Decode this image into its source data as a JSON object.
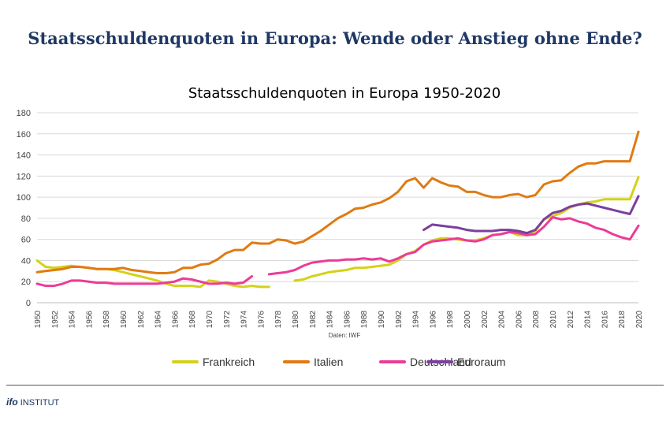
{
  "header": {
    "title": "Staatsschuldenquoten in Europa: Wende oder Anstieg ohne Ende?"
  },
  "footer": {
    "logo_word": "ifo",
    "logo_suffix": "INSTITUT"
  },
  "chart_data": {
    "type": "line",
    "title": "Staatsschuldenquoten in Europa 1950-2020",
    "source": "Daten: IWF",
    "xlabel": "",
    "ylabel": "",
    "ylim": [
      0,
      180
    ],
    "xlim": [
      1950,
      2020
    ],
    "yticks": [
      0,
      20,
      40,
      60,
      80,
      100,
      120,
      140,
      160,
      180
    ],
    "xticks": [
      1950,
      1952,
      1954,
      1956,
      1958,
      1960,
      1962,
      1964,
      1966,
      1968,
      1970,
      1972,
      1974,
      1976,
      1978,
      1980,
      1982,
      1984,
      1986,
      1988,
      1990,
      1992,
      1994,
      1996,
      1998,
      2000,
      2002,
      2004,
      2006,
      2008,
      2010,
      2012,
      2014,
      2016,
      2018,
      2020
    ],
    "grid": "horizontal",
    "legend_position": "bottom",
    "series": [
      {
        "name": "Frankreich",
        "color": "#d4d11a",
        "segments": [
          [
            [
              1950,
              40
            ],
            [
              1951,
              34
            ],
            [
              1952,
              33
            ],
            [
              1953,
              34
            ],
            [
              1954,
              35
            ],
            [
              1955,
              34
            ],
            [
              1956,
              33
            ],
            [
              1957,
              32
            ],
            [
              1958,
              32
            ],
            [
              1959,
              31
            ],
            [
              1960,
              29
            ],
            [
              1961,
              27
            ],
            [
              1962,
              25
            ],
            [
              1963,
              23
            ],
            [
              1964,
              21
            ],
            [
              1965,
              18
            ],
            [
              1966,
              16
            ],
            [
              1967,
              16
            ],
            [
              1968,
              16
            ],
            [
              1969,
              15
            ],
            [
              1970,
              21
            ],
            [
              1971,
              20
            ],
            [
              1972,
              18
            ],
            [
              1973,
              16
            ],
            [
              1974,
              15
            ],
            [
              1975,
              16
            ],
            [
              1976,
              15
            ],
            [
              1977,
              15
            ]
          ],
          [
            [
              1980,
              21
            ],
            [
              1981,
              22
            ],
            [
              1982,
              25
            ],
            [
              1983,
              27
            ],
            [
              1984,
              29
            ],
            [
              1985,
              30
            ],
            [
              1986,
              31
            ],
            [
              1987,
              33
            ],
            [
              1988,
              33
            ],
            [
              1989,
              34
            ],
            [
              1990,
              35
            ],
            [
              1991,
              36
            ],
            [
              1992,
              40
            ],
            [
              1993,
              46
            ],
            [
              1994,
              49
            ],
            [
              1995,
              55
            ],
            [
              1996,
              59
            ],
            [
              1997,
              61
            ],
            [
              1998,
              61
            ],
            [
              1999,
              60
            ],
            [
              2000,
              59
            ],
            [
              2001,
              59
            ],
            [
              2002,
              61
            ],
            [
              2003,
              64
            ],
            [
              2004,
              65
            ],
            [
              2005,
              67
            ],
            [
              2006,
              64
            ],
            [
              2007,
              64
            ],
            [
              2008,
              68
            ],
            [
              2009,
              79
            ],
            [
              2010,
              82
            ],
            [
              2011,
              85
            ],
            [
              2012,
              90
            ],
            [
              2013,
              93
            ],
            [
              2014,
              95
            ],
            [
              2015,
              96
            ],
            [
              2016,
              98
            ],
            [
              2017,
              98
            ],
            [
              2018,
              98
            ],
            [
              2019,
              98
            ],
            [
              2020,
              119
            ]
          ]
        ]
      },
      {
        "name": "Italien",
        "color": "#e07a12",
        "segments": [
          [
            [
              1950,
              29
            ],
            [
              1951,
              30
            ],
            [
              1952,
              31
            ],
            [
              1953,
              32
            ],
            [
              1954,
              34
            ],
            [
              1955,
              34
            ],
            [
              1956,
              33
            ],
            [
              1957,
              32
            ],
            [
              1958,
              32
            ],
            [
              1959,
              32
            ],
            [
              1960,
              33
            ],
            [
              1961,
              31
            ],
            [
              1962,
              30
            ],
            [
              1963,
              29
            ],
            [
              1964,
              28
            ],
            [
              1965,
              28
            ],
            [
              1966,
              29
            ],
            [
              1967,
              33
            ],
            [
              1968,
              33
            ],
            [
              1969,
              36
            ],
            [
              1970,
              37
            ],
            [
              1971,
              41
            ],
            [
              1972,
              47
            ],
            [
              1973,
              50
            ],
            [
              1974,
              50
            ],
            [
              1975,
              57
            ],
            [
              1976,
              56
            ],
            [
              1977,
              56
            ],
            [
              1978,
              60
            ],
            [
              1979,
              59
            ],
            [
              1980,
              56
            ],
            [
              1981,
              58
            ],
            [
              1982,
              63
            ],
            [
              1983,
              68
            ],
            [
              1984,
              74
            ],
            [
              1985,
              80
            ],
            [
              1986,
              84
            ],
            [
              1987,
              89
            ],
            [
              1988,
              90
            ],
            [
              1989,
              93
            ],
            [
              1990,
              95
            ],
            [
              1991,
              99
            ],
            [
              1992,
              105
            ],
            [
              1993,
              115
            ],
            [
              1994,
              118
            ],
            [
              1995,
              109
            ],
            [
              1996,
              118
            ],
            [
              1997,
              114
            ],
            [
              1998,
              111
            ],
            [
              1999,
              110
            ],
            [
              2000,
              105
            ],
            [
              2001,
              105
            ],
            [
              2002,
              102
            ],
            [
              2003,
              100
            ],
            [
              2004,
              100
            ],
            [
              2005,
              102
            ],
            [
              2006,
              103
            ],
            [
              2007,
              100
            ],
            [
              2008,
              102
            ],
            [
              2009,
              112
            ],
            [
              2010,
              115
            ],
            [
              2011,
              116
            ],
            [
              2012,
              123
            ],
            [
              2013,
              129
            ],
            [
              2014,
              132
            ],
            [
              2015,
              132
            ],
            [
              2016,
              134
            ],
            [
              2017,
              134
            ],
            [
              2018,
              134
            ],
            [
              2019,
              134
            ],
            [
              2020,
              162
            ]
          ]
        ]
      },
      {
        "name": "Deutschland",
        "color": "#ec3c96",
        "segments": [
          [
            [
              1950,
              18
            ],
            [
              1951,
              16
            ],
            [
              1952,
              16
            ],
            [
              1953,
              18
            ],
            [
              1954,
              21
            ],
            [
              1955,
              21
            ],
            [
              1956,
              20
            ],
            [
              1957,
              19
            ],
            [
              1958,
              19
            ],
            [
              1959,
              18
            ],
            [
              1960,
              18
            ],
            [
              1961,
              18
            ],
            [
              1962,
              18
            ],
            [
              1963,
              18
            ],
            [
              1964,
              18
            ],
            [
              1965,
              19
            ],
            [
              1966,
              20
            ],
            [
              1967,
              23
            ],
            [
              1968,
              22
            ],
            [
              1969,
              20
            ],
            [
              1970,
              18
            ],
            [
              1971,
              18
            ],
            [
              1972,
              19
            ],
            [
              1973,
              18
            ],
            [
              1974,
              19
            ],
            [
              1975,
              25
            ]
          ],
          [
            [
              1977,
              27
            ],
            [
              1978,
              28
            ],
            [
              1979,
              29
            ],
            [
              1980,
              31
            ],
            [
              1981,
              35
            ],
            [
              1982,
              38
            ],
            [
              1983,
              39
            ],
            [
              1984,
              40
            ],
            [
              1985,
              40
            ],
            [
              1986,
              41
            ],
            [
              1987,
              41
            ],
            [
              1988,
              42
            ],
            [
              1989,
              41
            ],
            [
              1990,
              42
            ],
            [
              1991,
              39
            ],
            [
              1992,
              42
            ],
            [
              1993,
              46
            ],
            [
              1994,
              48
            ],
            [
              1995,
              55
            ],
            [
              1996,
              58
            ],
            [
              1997,
              59
            ],
            [
              1998,
              60
            ],
            [
              1999,
              61
            ],
            [
              2000,
              59
            ],
            [
              2001,
              58
            ],
            [
              2002,
              60
            ],
            [
              2003,
              64
            ],
            [
              2004,
              65
            ],
            [
              2005,
              67
            ],
            [
              2006,
              66
            ],
            [
              2007,
              64
            ],
            [
              2008,
              65
            ],
            [
              2009,
              72
            ],
            [
              2010,
              81
            ],
            [
              2011,
              79
            ],
            [
              2012,
              80
            ],
            [
              2013,
              77
            ],
            [
              2014,
              75
            ],
            [
              2015,
              71
            ],
            [
              2016,
              69
            ],
            [
              2017,
              65
            ],
            [
              2018,
              62
            ],
            [
              2019,
              60
            ],
            [
              2020,
              73
            ]
          ]
        ]
      },
      {
        "name": "Euroraum",
        "color": "#7b3f9e",
        "segments": [
          [
            [
              1995,
              69
            ],
            [
              1996,
              74
            ],
            [
              1997,
              73
            ],
            [
              1998,
              72
            ],
            [
              1999,
              71
            ],
            [
              2000,
              69
            ],
            [
              2001,
              68
            ],
            [
              2002,
              68
            ],
            [
              2003,
              68
            ],
            [
              2004,
              69
            ],
            [
              2005,
              69
            ],
            [
              2006,
              68
            ],
            [
              2007,
              66
            ],
            [
              2008,
              69
            ],
            [
              2009,
              79
            ],
            [
              2010,
              85
            ],
            [
              2011,
              87
            ],
            [
              2012,
              91
            ],
            [
              2013,
              93
            ],
            [
              2014,
              94
            ],
            [
              2015,
              92
            ],
            [
              2016,
              90
            ],
            [
              2017,
              88
            ],
            [
              2018,
              86
            ],
            [
              2019,
              84
            ],
            [
              2020,
              101
            ]
          ]
        ]
      }
    ]
  }
}
